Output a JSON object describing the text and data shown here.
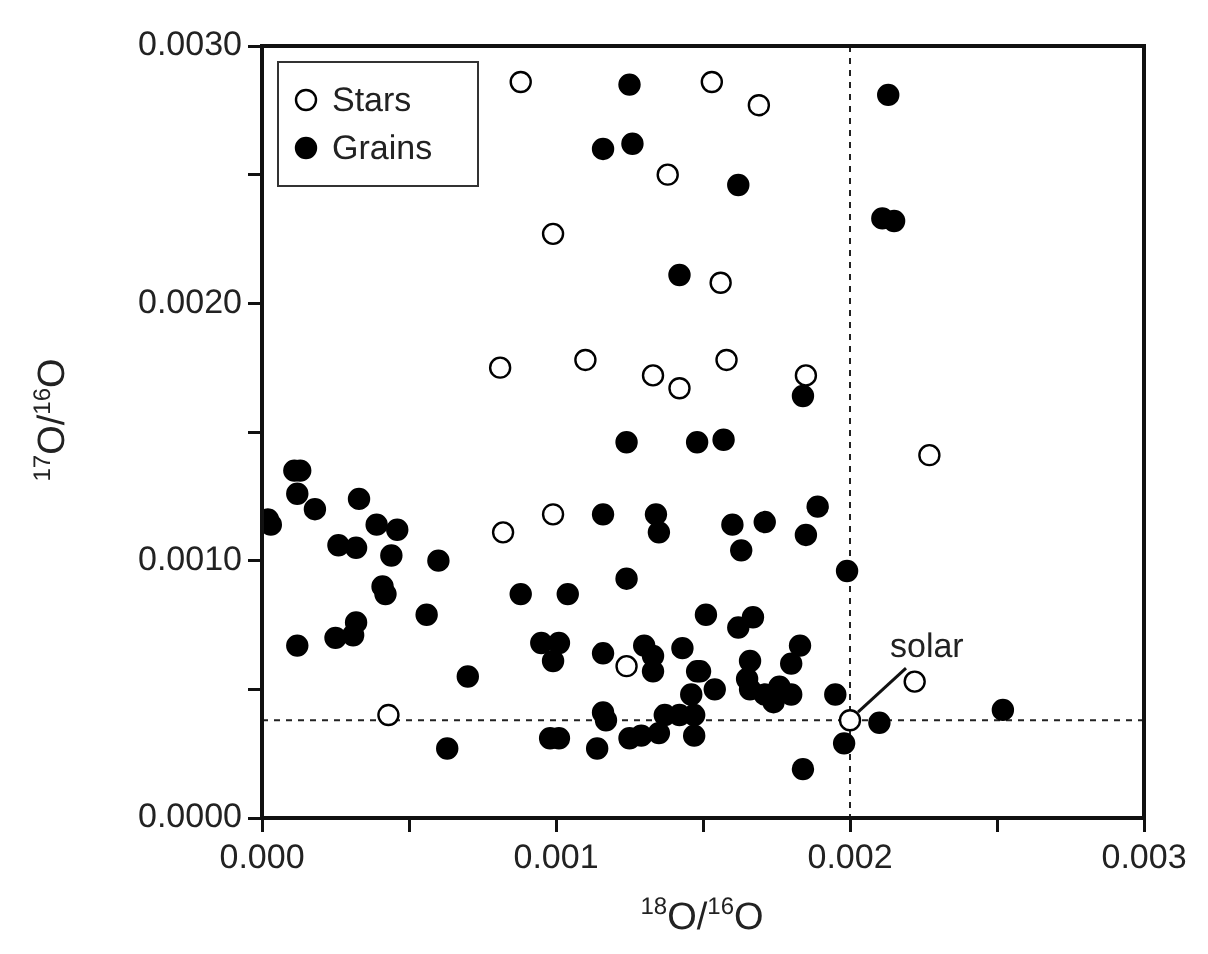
{
  "chart_data": {
    "type": "scatter",
    "xlabel": "$^{18}$O/$^{16}$O",
    "ylabel": "$^{17}$O/$^{16}$O",
    "marker": "circle",
    "legend": "top left",
    "grid": false,
    "xlim": [
      0,
      0.003
    ],
    "ylim": [
      0,
      0.003
    ],
    "xticks": [
      {
        "value": 0,
        "label": "0.000"
      },
      {
        "value": 0.0005,
        "label": null
      },
      {
        "value": 0.001,
        "label": "0.001"
      },
      {
        "value": 0.0015,
        "label": null
      },
      {
        "value": 0.002,
        "label": "0.002"
      },
      {
        "value": 0.0025,
        "label": null
      },
      {
        "value": 0.003,
        "label": "0.003"
      }
    ],
    "yticks": [
      {
        "value": 0,
        "label": "0.0000"
      },
      {
        "value": 0.0005,
        "label": null
      },
      {
        "value": 0.001,
        "label": "0.0010"
      },
      {
        "value": 0.0015,
        "label": null
      },
      {
        "value": 0.002,
        "label": "0.0020"
      },
      {
        "value": 0.0025,
        "label": null
      },
      {
        "value": 0.003,
        "label": "0.0030"
      }
    ],
    "ref_lines": [
      {
        "axis": "x",
        "value": 0.002,
        "line_style": "dashed"
      },
      {
        "axis": "y",
        "value": 0.00038,
        "line_style": "dashed"
      }
    ],
    "annotations": [
      {
        "text": "solar",
        "x": 0.002,
        "y": 0.00038
      }
    ],
    "series": [
      {
        "name": "Stars",
        "color": "#ffffff",
        "x": [
          0.00088,
          0.00138,
          0.00099,
          0.00081,
          0.0011,
          0.00133,
          0.00142,
          0.00153,
          0.00169,
          0.00156,
          0.00158,
          0.00185,
          0.00227,
          0.00082,
          0.00099,
          0.00124,
          0.00043,
          0.00222,
          0.002
        ],
        "values": [
          0.00286,
          0.0025,
          0.00227,
          0.00175,
          0.00178,
          0.00172,
          0.00167,
          0.00286,
          0.00277,
          0.00208,
          0.00178,
          0.00172,
          0.00141,
          0.00111,
          0.00118,
          0.00059,
          0.0004,
          0.00053,
          0.00038
        ]
      },
      {
        "name": "Grains",
        "color": "#000000",
        "x": [
          0.00125,
          0.00116,
          0.00126,
          0.00142,
          0.00124,
          0.00148,
          0.00213,
          0.00211,
          0.00215,
          0.00162,
          0.00184,
          0.00157,
          0.00011,
          0.00013,
          2e-05,
          3e-05,
          0.00012,
          0.00018,
          0.00033,
          0.00039,
          0.00046,
          0.00026,
          0.00032,
          0.00044,
          0.0006,
          0.00041,
          0.00042,
          0.00056,
          0.00012,
          0.00025,
          0.00031,
          0.00032,
          0.0007,
          0.00063,
          0.00088,
          0.00104,
          0.00116,
          0.00134,
          0.00135,
          0.00124,
          0.00095,
          0.00101,
          0.00099,
          0.00116,
          0.0013,
          0.00133,
          0.00133,
          0.00143,
          0.00148,
          0.00146,
          0.00116,
          0.00117,
          0.00098,
          0.00101,
          0.00114,
          0.00125,
          0.00129,
          0.00135,
          0.00137,
          0.00142,
          0.00147,
          0.00147,
          0.00189,
          0.0016,
          0.00171,
          0.00163,
          0.00185,
          0.00199,
          0.00151,
          0.00162,
          0.00167,
          0.00149,
          0.00183,
          0.0018,
          0.00166,
          0.00165,
          0.00166,
          0.00154,
          0.00171,
          0.00174,
          0.00176,
          0.0018,
          0.00195,
          0.00184,
          0.00198,
          0.0021,
          0.00252
        ],
        "values": [
          0.00285,
          0.0026,
          0.00262,
          0.00211,
          0.00146,
          0.00146,
          0.00281,
          0.00233,
          0.00232,
          0.00246,
          0.00164,
          0.00147,
          0.00135,
          0.00135,
          0.00116,
          0.00114,
          0.00126,
          0.0012,
          0.00124,
          0.00114,
          0.00112,
          0.00106,
          0.00105,
          0.00102,
          0.001,
          0.0009,
          0.00087,
          0.00079,
          0.00067,
          0.0007,
          0.00071,
          0.00076,
          0.00055,
          0.00027,
          0.00087,
          0.00087,
          0.00118,
          0.00118,
          0.00111,
          0.00093,
          0.00068,
          0.00068,
          0.00061,
          0.00064,
          0.00067,
          0.00063,
          0.00057,
          0.00066,
          0.00057,
          0.00048,
          0.00041,
          0.00038,
          0.00031,
          0.00031,
          0.00027,
          0.00031,
          0.00032,
          0.00033,
          0.0004,
          0.0004,
          0.0004,
          0.00032,
          0.00121,
          0.00114,
          0.00115,
          0.00104,
          0.0011,
          0.00096,
          0.00079,
          0.00074,
          0.00078,
          0.00057,
          0.00067,
          0.0006,
          0.00061,
          0.00054,
          0.0005,
          0.0005,
          0.00048,
          0.00045,
          0.00051,
          0.00048,
          0.00048,
          0.00019,
          0.00029,
          0.00037,
          0.00042
        ]
      }
    ]
  }
}
